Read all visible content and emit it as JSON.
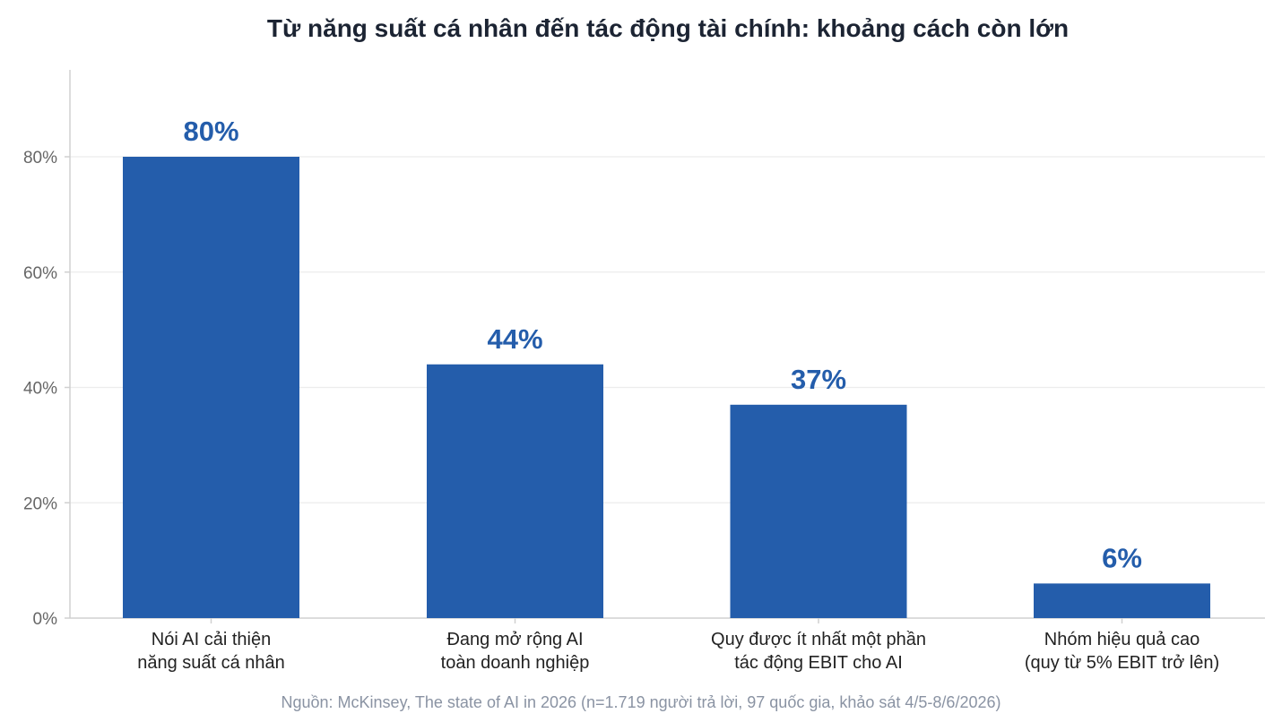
{
  "chart_data": {
    "type": "bar",
    "title": "Từ năng suất cá nhân đến tác động tài chính: khoảng cách còn lớn",
    "categories": [
      [
        "Nói AI cải thiện",
        "năng suất cá nhân"
      ],
      [
        "Đang mở rộng AI",
        "toàn doanh nghiệp"
      ],
      [
        "Quy được ít nhất một phần",
        "tác động EBIT cho AI"
      ],
      [
        "Nhóm hiệu quả cao",
        "(quy từ 5% EBIT trở lên)"
      ]
    ],
    "values": [
      80,
      44,
      37,
      6
    ],
    "data_labels": [
      "80%",
      "44%",
      "37%",
      "6%"
    ],
    "ylim": [
      0,
      95
    ],
    "yticks": [
      0,
      20,
      40,
      60,
      80
    ],
    "ytick_labels": [
      "0%",
      "20%",
      "40%",
      "60%",
      "80%"
    ],
    "grid": true,
    "colors": {
      "bar": "#245dab",
      "label": "#245dab",
      "grid": "#ececec",
      "axis": "#d0d0d0",
      "tick_text": "#666666",
      "cat_text": "#222222"
    }
  },
  "source": "Nguồn: McKinsey, The state of AI in 2026 (n=1.719 người trả lời, 97 quốc gia, khảo sát 4/5-8/6/2026)"
}
